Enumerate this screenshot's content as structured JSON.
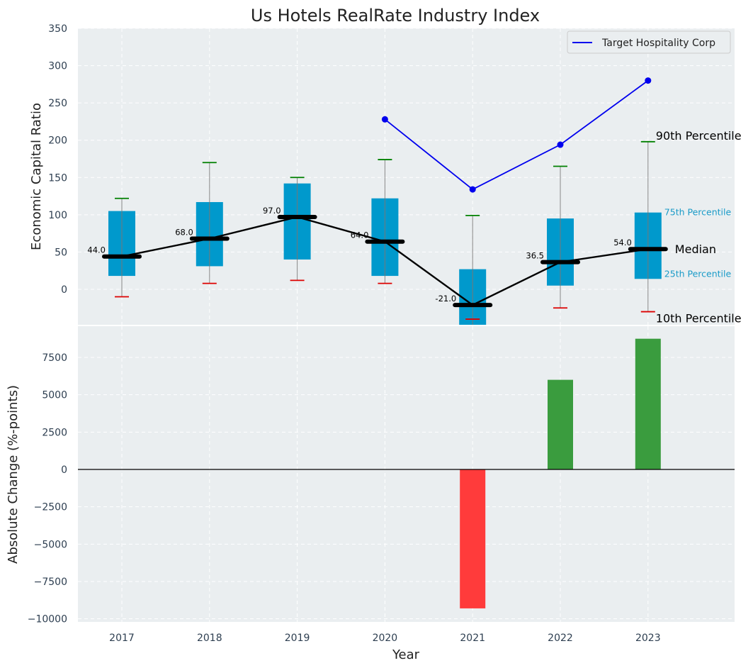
{
  "chart_data": [
    {
      "type": "box",
      "title": "Us Hotels RealRate Industry Index",
      "ylabel": "Economic Capital Ratio",
      "ylim": [
        -50,
        350
      ],
      "yticks": [
        0,
        50,
        100,
        150,
        200,
        250,
        300,
        350
      ],
      "categories": [
        "2017",
        "2018",
        "2019",
        "2020",
        "2021",
        "2022",
        "2023"
      ],
      "grid": true,
      "percentiles": {
        "p10": [
          -10,
          8,
          12,
          8,
          -40,
          -25,
          -30
        ],
        "p25": [
          18,
          31,
          40,
          18,
          -50,
          5,
          14
        ],
        "median": [
          44.0,
          68.0,
          97.0,
          64.0,
          -21.0,
          36.5,
          54.0
        ],
        "median_labels": [
          "44.0",
          "68.0",
          "97.0",
          "64.0",
          "-21.0",
          "36.5",
          "54.0"
        ],
        "p75": [
          105,
          117,
          142,
          122,
          27,
          95,
          103
        ],
        "p90": [
          122,
          170,
          150,
          174,
          99,
          165,
          198
        ]
      },
      "company_series": {
        "name": "Target Hospitality Corp",
        "x": [
          "2020",
          "2021",
          "2022",
          "2023"
        ],
        "values": [
          228,
          134,
          194,
          280
        ],
        "color": "#0000ee"
      },
      "annotations": {
        "p90": "90th Percentile",
        "p75": "75th Percentile",
        "median": "Median",
        "p25": "25th Percentile",
        "p10": "10th Percentile"
      },
      "legend": {
        "placement": "top-right",
        "entries": [
          "Target Hospitality Corp"
        ]
      },
      "colors": {
        "box": "#0099cc",
        "median_line": "#000000",
        "whisker_top": "#008000",
        "whisker_bottom": "#dd0000",
        "panel_bg": "#eaeef0"
      }
    },
    {
      "type": "bar",
      "ylabel": "Absolute Change (%-points)",
      "xlabel": "Year",
      "ylim": [
        -10000,
        9500
      ],
      "yticks": [
        -10000,
        -7500,
        -5000,
        -2500,
        0,
        2500,
        5000,
        7500
      ],
      "ytick_labels": [
        "−10000",
        "−7500",
        "−5000",
        "−2500",
        "0",
        "2500",
        "5000",
        "7500"
      ],
      "categories": [
        "2017",
        "2018",
        "2019",
        "2020",
        "2021",
        "2022",
        "2023"
      ],
      "values": [
        0,
        0,
        0,
        0,
        -9300,
        6000,
        8750
      ],
      "grid": true,
      "colors": {
        "positive": "#3a9c3e",
        "negative": "#ff3b3b"
      }
    }
  ]
}
